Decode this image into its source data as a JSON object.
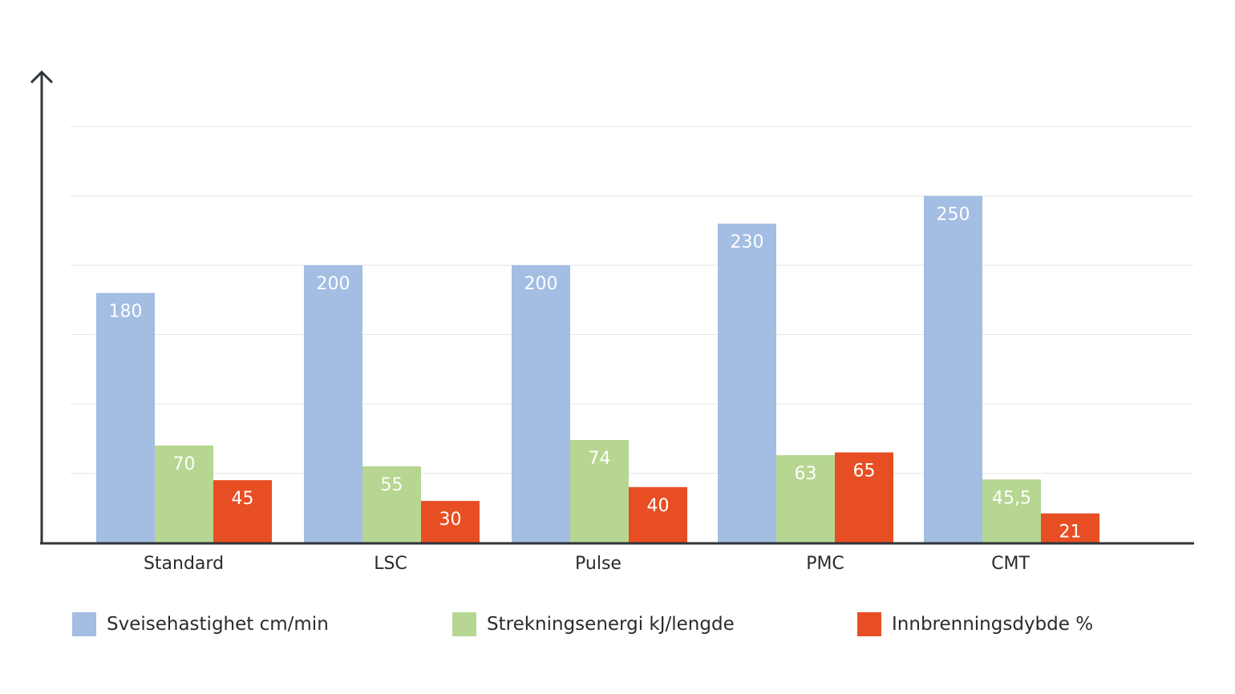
{
  "chart_data": {
    "type": "bar",
    "categories": [
      "Standard",
      "LSC",
      "Pulse",
      "PMC",
      "CMT"
    ],
    "series": [
      {
        "name": "Sveisehastighet cm/min",
        "color": "#a3bde3",
        "values": [
          180,
          200,
          200,
          230,
          250
        ],
        "labels": [
          "180",
          "200",
          "200",
          "230",
          "250"
        ]
      },
      {
        "name": "Strekningsenergi kJ/lengde",
        "color": "#b6d692",
        "values": [
          70,
          55,
          74,
          63,
          45.5
        ],
        "labels": [
          "70",
          "55",
          "74",
          "63",
          "45,5"
        ]
      },
      {
        "name": "Innbrenningsdybde %",
        "color": "#e84e23",
        "values": [
          45,
          30,
          40,
          65,
          21
        ],
        "labels": [
          "45",
          "30",
          "40",
          "65",
          "21"
        ]
      }
    ],
    "ylim": [
      0,
      300
    ],
    "grid": true,
    "legend_position": "bottom",
    "title": "",
    "xlabel": "",
    "ylabel": ""
  }
}
